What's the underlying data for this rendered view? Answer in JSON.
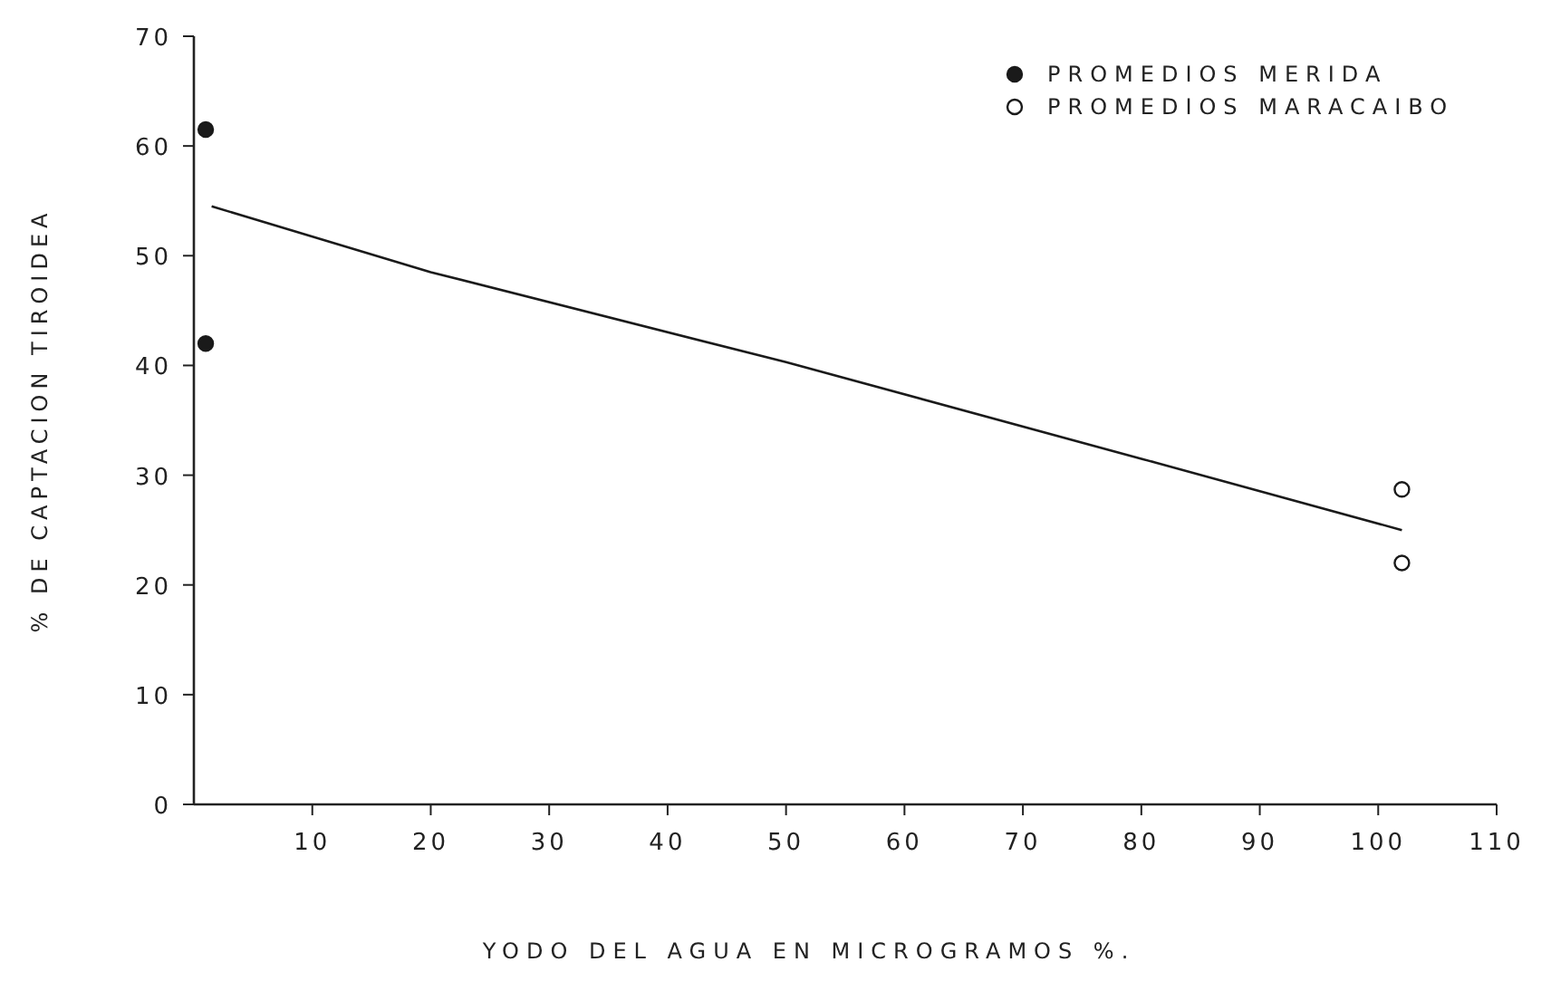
{
  "chart_data": {
    "type": "scatter",
    "xlabel": "YODO DEL AGUA EN MICROGRAMOS %.",
    "ylabel": "% DE CAPTACION TIROIDEA",
    "xlim": [
      0,
      110
    ],
    "ylim": [
      0,
      70
    ],
    "xticks": [
      10,
      20,
      30,
      40,
      50,
      60,
      70,
      80,
      90,
      100,
      110
    ],
    "yticks": [
      0,
      10,
      20,
      30,
      40,
      50,
      60,
      70
    ],
    "grid": false,
    "legend": "top right",
    "series": [
      {
        "name": "PROMEDIOS MERIDA",
        "color": "#1a1a1a",
        "marker": "circle",
        "x": [
          1,
          1
        ],
        "values": [
          61.5,
          42
        ]
      },
      {
        "name": "PROMEDIOS MARACAIBO",
        "color": "#1a1a1a",
        "marker": "circle",
        "x": [
          102,
          102
        ],
        "values": [
          28.7,
          22
        ]
      },
      {
        "color": "#1a1a1a",
        "type": "line",
        "x": [
          1.5,
          20,
          50,
          80,
          102
        ],
        "values": [
          54.5,
          48.5,
          40.3,
          31.5,
          25
        ]
      }
    ]
  }
}
